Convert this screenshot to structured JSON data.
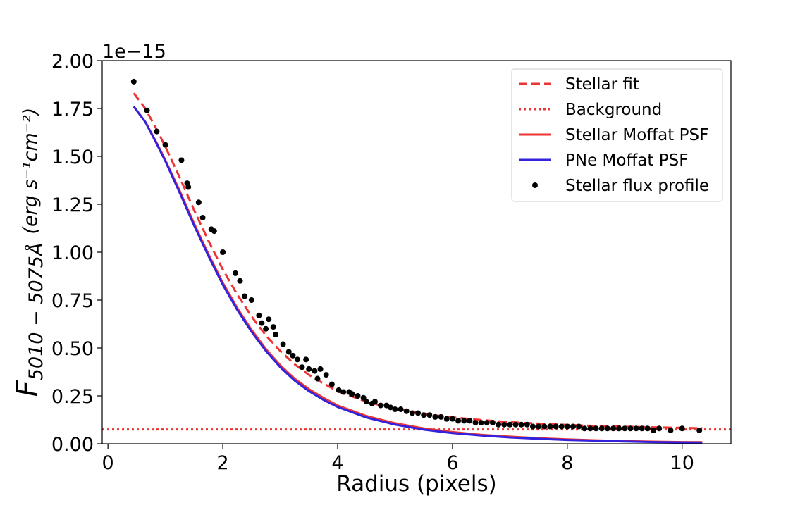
{
  "chart_data": {
    "type": "scatter",
    "xlabel": "Radius (pixels)",
    "ylabel": "F₅₀₁₀ − 5₀₇₅ Å (erg s⁻¹cm⁻²)",
    "ylabel_main": "F",
    "ylabel_sub": "5010 − 5075Å",
    "ylabel_units": "(erg s⁻¹cm⁻²)",
    "y_offset_label": "1e−15",
    "xlim": [
      -0.1,
      10.85
    ],
    "ylim": [
      0,
      2.0
    ],
    "xticks": [
      0,
      2,
      4,
      6,
      8,
      10
    ],
    "xtick_labels": [
      "0",
      "2",
      "4",
      "6",
      "8",
      "10"
    ],
    "yticks": [
      0,
      0.25,
      0.5,
      0.75,
      1.0,
      1.25,
      1.5,
      1.75,
      2.0
    ],
    "ytick_labels": [
      "0.00",
      "0.25",
      "0.50",
      "0.75",
      "1.00",
      "1.25",
      "1.50",
      "1.75",
      "2.00"
    ],
    "grid": false,
    "legend_position": "top-right",
    "legend": [
      {
        "label": "Stellar fit",
        "style": "dashed",
        "color": "#ee3333"
      },
      {
        "label": "Background",
        "style": "dotted",
        "color": "#ee3333"
      },
      {
        "label": "Stellar Moffat PSF",
        "style": "solid",
        "color": "#ee3333"
      },
      {
        "label": "PNe Moffat PSF",
        "style": "solid",
        "color": "#3322dd"
      },
      {
        "label": "Stellar flux profile",
        "style": "marker",
        "color": "#000000"
      }
    ],
    "background_level": 0.075,
    "series": [
      {
        "name": "Stellar fit",
        "style": "dashed",
        "color": "#ee3333",
        "x": [
          0.45,
          0.65,
          0.85,
          1.0,
          1.25,
          1.5,
          1.75,
          2.0,
          2.25,
          2.5,
          2.75,
          3.0,
          3.25,
          3.5,
          3.75,
          4.0,
          4.5,
          5.0,
          5.5,
          6.0,
          6.5,
          7.0,
          7.5,
          8.0,
          8.5,
          9.0,
          9.5,
          10.0,
          10.35
        ],
        "y": [
          1.83,
          1.75,
          1.64,
          1.55,
          1.39,
          1.22,
          1.06,
          0.91,
          0.78,
          0.665,
          0.565,
          0.485,
          0.415,
          0.36,
          0.315,
          0.275,
          0.22,
          0.182,
          0.156,
          0.138,
          0.124,
          0.113,
          0.105,
          0.098,
          0.093,
          0.089,
          0.086,
          0.083,
          0.081
        ]
      },
      {
        "name": "Stellar Moffat PSF",
        "style": "solid",
        "color": "#ee3333",
        "x": [
          0.45,
          0.65,
          0.85,
          1.0,
          1.25,
          1.5,
          1.75,
          2.0,
          2.25,
          2.5,
          2.75,
          3.0,
          3.25,
          3.5,
          3.75,
          4.0,
          4.5,
          5.0,
          5.5,
          6.0,
          6.5,
          7.0,
          7.5,
          8.0,
          8.5,
          9.0,
          9.5,
          10.0,
          10.35
        ],
        "y": [
          1.76,
          1.68,
          1.57,
          1.48,
          1.32,
          1.15,
          0.99,
          0.84,
          0.71,
          0.595,
          0.495,
          0.41,
          0.34,
          0.285,
          0.24,
          0.2,
          0.145,
          0.107,
          0.08,
          0.061,
          0.047,
          0.037,
          0.029,
          0.023,
          0.018,
          0.014,
          0.011,
          0.009,
          0.008
        ]
      },
      {
        "name": "PNe Moffat PSF",
        "style": "solid",
        "color": "#3322dd",
        "x": [
          0.45,
          0.65,
          0.85,
          1.0,
          1.25,
          1.5,
          1.75,
          2.0,
          2.25,
          2.5,
          2.75,
          3.0,
          3.25,
          3.5,
          3.75,
          4.0,
          4.5,
          5.0,
          5.5,
          6.0,
          6.5,
          7.0,
          7.5,
          8.0,
          8.5,
          9.0,
          9.5,
          10.0,
          10.35
        ],
        "y": [
          1.76,
          1.68,
          1.565,
          1.475,
          1.31,
          1.14,
          0.98,
          0.83,
          0.7,
          0.585,
          0.485,
          0.4,
          0.33,
          0.275,
          0.23,
          0.192,
          0.137,
          0.1,
          0.074,
          0.056,
          0.043,
          0.033,
          0.026,
          0.02,
          0.016,
          0.012,
          0.009,
          0.007,
          0.006
        ]
      },
      {
        "name": "Stellar flux profile",
        "style": "marker",
        "color": "#000000",
        "x": [
          0.45,
          0.68,
          0.85,
          1.0,
          1.28,
          1.38,
          1.4,
          1.58,
          1.65,
          1.8,
          1.85,
          2.0,
          2.22,
          2.3,
          2.38,
          2.5,
          2.63,
          2.68,
          2.75,
          2.8,
          2.88,
          2.92,
          3.05,
          3.15,
          3.22,
          3.3,
          3.38,
          3.45,
          3.5,
          3.6,
          3.65,
          3.7,
          3.8,
          3.9,
          4.02,
          4.1,
          4.2,
          4.25,
          4.35,
          4.45,
          4.5,
          4.6,
          4.65,
          4.75,
          4.85,
          4.92,
          5.0,
          5.1,
          5.2,
          5.3,
          5.4,
          5.5,
          5.6,
          5.7,
          5.8,
          5.9,
          6.0,
          6.1,
          6.2,
          6.3,
          6.4,
          6.5,
          6.6,
          6.7,
          6.8,
          6.9,
          7.0,
          7.1,
          7.2,
          7.3,
          7.4,
          7.5,
          7.6,
          7.7,
          7.8,
          7.9,
          8.0,
          8.1,
          8.2,
          8.3,
          8.4,
          8.5,
          8.6,
          8.7,
          8.8,
          8.9,
          9.0,
          9.1,
          9.2,
          9.3,
          9.4,
          9.5,
          9.6,
          9.8,
          10.0,
          10.3
        ],
        "y": [
          1.89,
          1.74,
          1.63,
          1.56,
          1.48,
          1.36,
          1.34,
          1.26,
          1.18,
          1.12,
          1.11,
          1.0,
          0.89,
          0.85,
          0.77,
          0.75,
          0.67,
          0.63,
          0.6,
          0.65,
          0.61,
          0.57,
          0.52,
          0.48,
          0.46,
          0.44,
          0.4,
          0.44,
          0.39,
          0.38,
          0.34,
          0.39,
          0.36,
          0.31,
          0.28,
          0.27,
          0.27,
          0.26,
          0.25,
          0.24,
          0.22,
          0.21,
          0.22,
          0.2,
          0.2,
          0.19,
          0.18,
          0.18,
          0.17,
          0.16,
          0.16,
          0.15,
          0.15,
          0.14,
          0.14,
          0.13,
          0.13,
          0.12,
          0.12,
          0.12,
          0.11,
          0.11,
          0.11,
          0.11,
          0.1,
          0.1,
          0.1,
          0.1,
          0.1,
          0.1,
          0.09,
          0.09,
          0.09,
          0.09,
          0.09,
          0.09,
          0.09,
          0.09,
          0.09,
          0.08,
          0.08,
          0.08,
          0.08,
          0.08,
          0.08,
          0.08,
          0.08,
          0.08,
          0.08,
          0.08,
          0.08,
          0.07,
          0.08,
          0.07,
          0.08,
          0.07
        ]
      }
    ]
  }
}
